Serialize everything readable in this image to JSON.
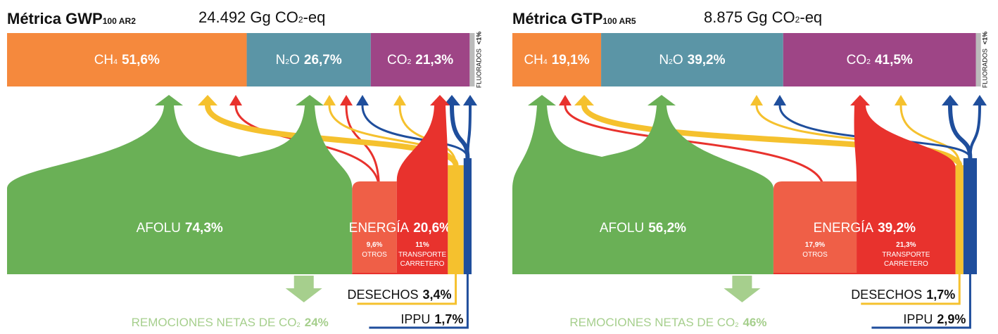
{
  "panels": [
    {
      "title": "Métrica GWP",
      "title_sub": "100 AR2",
      "total": "24.492 Gg CO",
      "total_sub": "2",
      "total_suffix": "-eq",
      "gases": [
        {
          "name": "CH",
          "sub": "4",
          "value": 51.6,
          "label": "51,6%"
        },
        {
          "name": "N",
          "sub": "2",
          "after": "O",
          "value": 26.7,
          "label": "26,7%"
        },
        {
          "name": "CO",
          "sub": "2",
          "value": 21.3,
          "label": "21,3%"
        }
      ],
      "fluorados": {
        "name": "FLUORADOS",
        "label": "<1%"
      },
      "sectors": [
        {
          "name": "AFOLU",
          "value": 74.3,
          "label": "74,3%"
        },
        {
          "name": "ENERGÍA",
          "value": 20.6,
          "label": "20,6%",
          "parts": [
            {
              "name": [
                "OTROS"
              ],
              "value": 9.6,
              "label": "9,6%"
            },
            {
              "name": [
                "TRANSPORTE",
                "CARRETERO"
              ],
              "value": 11,
              "label": "11%"
            }
          ]
        },
        {
          "name": "DESECHOS",
          "value": 3.4,
          "label": "3,4%"
        },
        {
          "name": "IPPU",
          "value": 1.7,
          "label": "1,7%"
        }
      ],
      "removals": {
        "name": "REMOCIONES NETAS DE CO",
        "sub": "2",
        "value": 24,
        "label": "24%"
      }
    },
    {
      "title": "Métrica GTP",
      "title_sub": "100 AR5",
      "total": "8.875 Gg CO",
      "total_sub": "2",
      "total_suffix": "-eq",
      "gases": [
        {
          "name": "CH",
          "sub": "4",
          "value": 19.1,
          "label": "19,1%"
        },
        {
          "name": "N",
          "sub": "2",
          "after": "O",
          "value": 39.2,
          "label": "39,2%"
        },
        {
          "name": "CO",
          "sub": "2",
          "value": 41.5,
          "label": "41,5%"
        }
      ],
      "fluorados": {
        "name": "FLUORADOS",
        "label": "<1%"
      },
      "sectors": [
        {
          "name": "AFOLU",
          "value": 56.2,
          "label": "56,2%"
        },
        {
          "name": "ENERGÍA",
          "value": 39.2,
          "label": "39,2%",
          "parts": [
            {
              "name": [
                "OTROS"
              ],
              "value": 17.9,
              "label": "17,9%"
            },
            {
              "name": [
                "TRANSPORTE",
                "CARRETERO"
              ],
              "value": 21.3,
              "label": "21,3%"
            }
          ]
        },
        {
          "name": "DESECHOS",
          "value": 1.7,
          "label": "1,7%"
        },
        {
          "name": "IPPU",
          "value": 2.9,
          "label": "2,9%"
        }
      ],
      "removals": {
        "name": "REMOCIONES NETAS DE CO",
        "sub": "2",
        "value": 46,
        "label": "46%"
      }
    }
  ]
}
